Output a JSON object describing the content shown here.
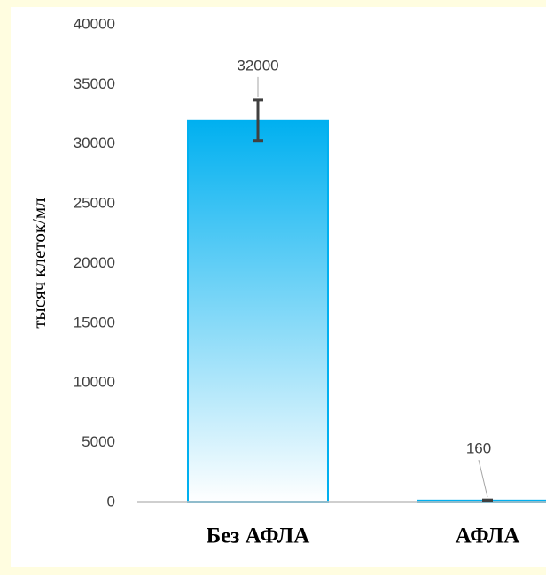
{
  "chart_data": {
    "type": "bar",
    "y_label": "тысяч клеток/мл",
    "categories": [
      "Без АФЛА",
      "АФЛА"
    ],
    "values": [
      32000,
      160
    ],
    "errors": [
      1700,
      50
    ],
    "color": "#00b0f0",
    "ylim": [
      0,
      40000
    ],
    "yticks": [
      0,
      5000,
      10000,
      15000,
      20000,
      25000,
      30000,
      35000,
      40000
    ],
    "grid": false
  }
}
